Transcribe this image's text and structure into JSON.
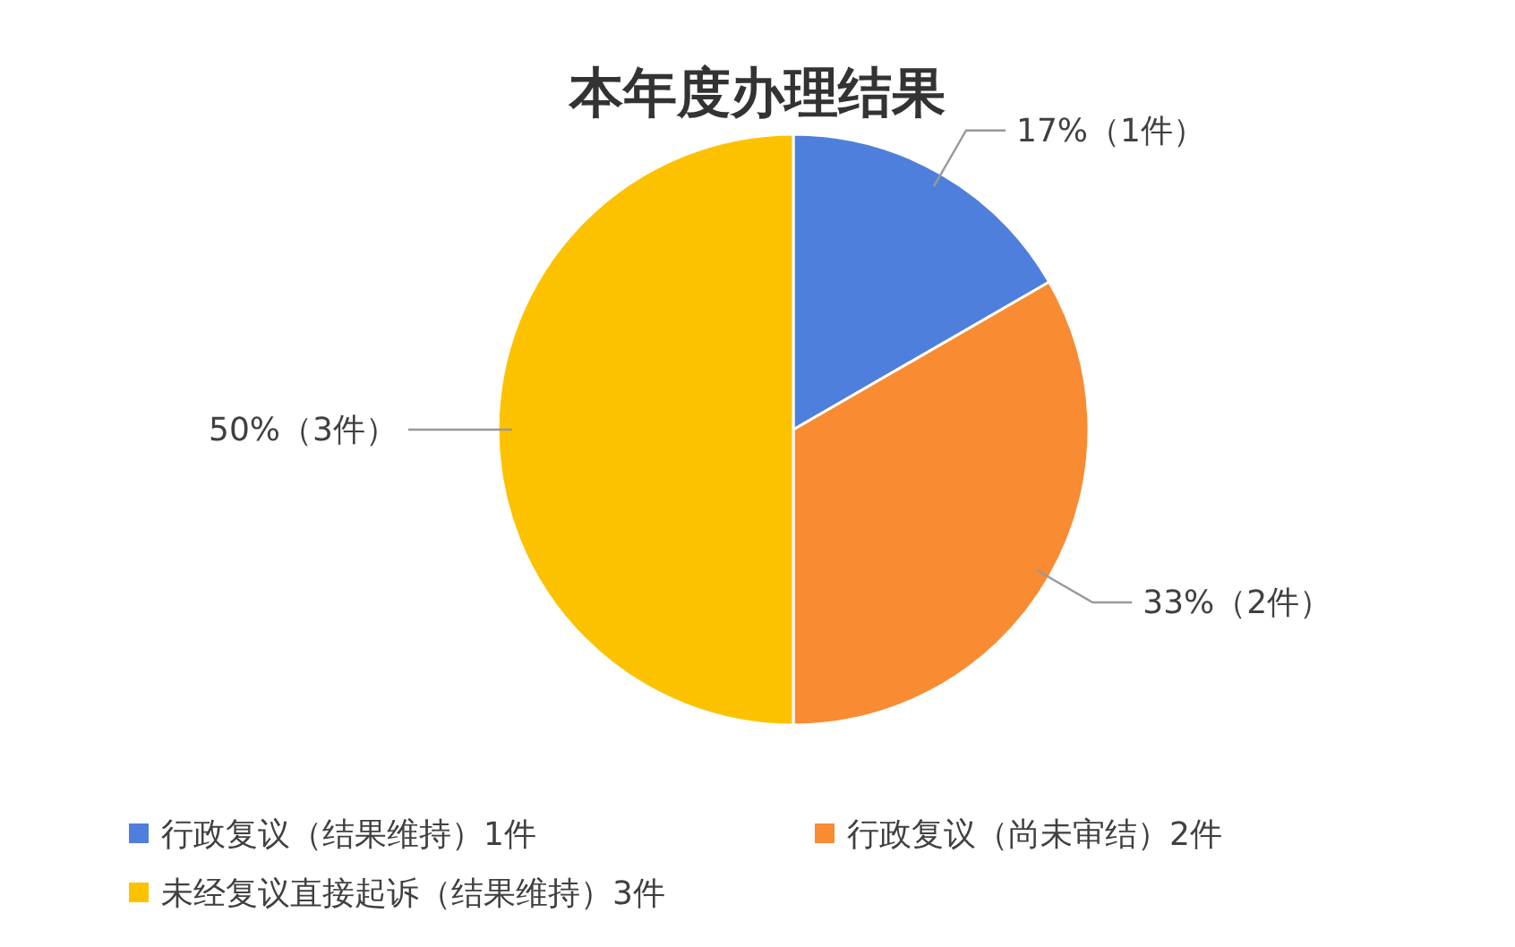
{
  "chart_data": {
    "type": "pie",
    "title": "本年度办理结果",
    "categories": [
      "行政复议（结果维持）1件",
      "行政复议（尚未审结）2件",
      "未经复议直接起诉（结果维持）3件"
    ],
    "values": [
      1,
      2,
      3
    ],
    "value_labels": [
      "17%（1件）",
      "33%（2件）",
      "50%（3件）"
    ],
    "colors": [
      "#4f7fdc",
      "#f98b33",
      "#fcc200"
    ],
    "legend": "bottom"
  }
}
